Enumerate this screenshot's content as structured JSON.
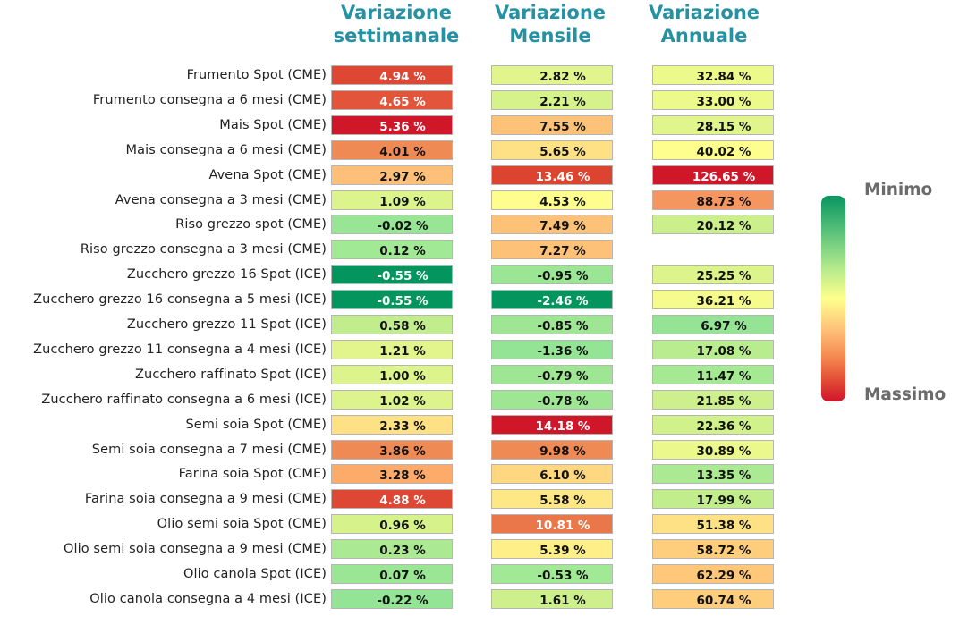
{
  "chart_data": {
    "type": "table",
    "columns": [
      "Variazione\nsettimanale",
      "Variazione\nMensile",
      "Variazione\nAnnuale"
    ],
    "rows": [
      {
        "label": "Frumento Spot (CME)",
        "values": [
          "4.94 %",
          "2.82 %",
          "32.84 %"
        ],
        "colors": [
          "#dd4733",
          "#e2f58c",
          "#ecf98b"
        ]
      },
      {
        "label": "Frumento consegna a 6 mesi (CME)",
        "values": [
          "4.65 %",
          "2.21 %",
          "33.00 %"
        ],
        "colors": [
          "#e2553a",
          "#d6f28a",
          "#ecf98b"
        ]
      },
      {
        "label": "Mais Spot (CME)",
        "values": [
          "5.36 %",
          "7.55 %",
          "28.15 %"
        ],
        "colors": [
          "#d0172a",
          "#fec178",
          "#e0f58b"
        ]
      },
      {
        "label": "Mais consegna a 6 mesi (CME)",
        "values": [
          "4.01 %",
          "5.65 %",
          "40.02 %"
        ],
        "colors": [
          "#f08a55",
          "#fee185",
          "#fefe8e"
        ]
      },
      {
        "label": "Avena Spot (CME)",
        "values": [
          "2.97 %",
          "13.46 %",
          "126.65 %"
        ],
        "colors": [
          "#fec078",
          "#dd4430",
          "#d0172a"
        ]
      },
      {
        "label": "Avena consegna a 3 mesi (CME)",
        "values": [
          "1.09 %",
          "4.53 %",
          "88.73 %"
        ],
        "colors": [
          "#dcf48b",
          "#fefe8e",
          "#f59661"
        ]
      },
      {
        "label": "Riso grezzo spot (CME)",
        "values": [
          "-0.02 %",
          "7.49 %",
          "20.12 %"
        ],
        "colors": [
          "#98e695",
          "#fec178",
          "#cbef8b"
        ]
      },
      {
        "label": "Riso grezzo consegna a 3 mesi (CME)",
        "values": [
          "0.12 %",
          "7.27 %",
          ""
        ],
        "colors": [
          "#a1e994",
          "#fec178",
          ""
        ]
      },
      {
        "label": "Zucchero grezzo 16 Spot (ICE)",
        "values": [
          "-0.55 %",
          "-0.95 %",
          "25.25 %"
        ],
        "colors": [
          "#04955f",
          "#9be694",
          "#dcf48b"
        ]
      },
      {
        "label": "Zucchero grezzo 16 consegna a 5 mesi (ICE)",
        "values": [
          "-0.55 %",
          "-2.46 %",
          "36.21 %"
        ],
        "colors": [
          "#04955f",
          "#04955f",
          "#f5fb8c"
        ]
      },
      {
        "label": "Zucchero grezzo 11 Spot (ICE)",
        "values": [
          "0.58 %",
          "-0.85 %",
          "6.97 %"
        ],
        "colors": [
          "#c1ed8d",
          "#9ee694",
          "#95e495"
        ]
      },
      {
        "label": "Zucchero grezzo 11 consegna a 4 mesi (ICE)",
        "values": [
          "1.21 %",
          "-1.36 %",
          "17.08 %"
        ],
        "colors": [
          "#e2f58c",
          "#93e495",
          "#b9ec8e"
        ]
      },
      {
        "label": "Zucchero raffinato Spot (ICE)",
        "values": [
          "1.00 %",
          "-0.79 %",
          "11.47 %"
        ],
        "colors": [
          "#dcf48b",
          "#9ee694",
          "#a6e993"
        ]
      },
      {
        "label": "Zucchero raffinato consegna a 6 mesi (ICE)",
        "values": [
          "1.02 %",
          "-0.78 %",
          "21.85 %"
        ],
        "colors": [
          "#dcf48b",
          "#9ee694",
          "#cdf08c"
        ]
      },
      {
        "label": "Semi soia Spot (CME)",
        "values": [
          "2.33 %",
          "14.18 %",
          "22.36 %"
        ],
        "colors": [
          "#fee185",
          "#d0172a",
          "#d1f18b"
        ]
      },
      {
        "label": "Semi soia consegna a 7 mesi (CME)",
        "values": [
          "3.86 %",
          "9.98 %",
          "30.89 %"
        ],
        "colors": [
          "#f08a55",
          "#f08a55",
          "#eaf88c"
        ]
      },
      {
        "label": "Farina soia Spot (CME)",
        "values": [
          "3.28 %",
          "6.10 %",
          "13.35 %"
        ],
        "colors": [
          "#fdab6b",
          "#fed780",
          "#ace993"
        ]
      },
      {
        "label": "Farina soia consegna a 9 mesi (CME)",
        "values": [
          "4.88 %",
          "5.58 %",
          "17.99 %"
        ],
        "colors": [
          "#dd4733",
          "#fee785",
          "#c1ed8d"
        ]
      },
      {
        "label": "Olio semi soia Spot (CME)",
        "values": [
          "0.96 %",
          "10.81 %",
          "51.38 %"
        ],
        "colors": [
          "#d6f28a",
          "#ea774a",
          "#fee185"
        ]
      },
      {
        "label": "Olio semi soia consegna a 9 mesi (CME)",
        "values": [
          "0.23 %",
          "5.39 %",
          "58.72 %"
        ],
        "colors": [
          "#ace993",
          "#feef89",
          "#fece7d"
        ]
      },
      {
        "label": "Olio canola Spot (ICE)",
        "values": [
          "0.07 %",
          "-0.53 %",
          "62.29 %"
        ],
        "colors": [
          "#9be694",
          "#a1e994",
          "#fec77a"
        ]
      },
      {
        "label": "Olio canola consegna a 4 mesi (ICE)",
        "values": [
          "-0.22 %",
          "1.61 %",
          "60.74 %"
        ],
        "colors": [
          "#93e495",
          "#cdf08c",
          "#fece7d"
        ]
      }
    ],
    "dark_text_white": [
      "#dd4733",
      "#e2553a",
      "#d0172a",
      "#dd4430",
      "#04955f",
      "#ea774a"
    ],
    "legend": {
      "top_label": "Minimo",
      "bottom_label": "Massimo"
    }
  }
}
